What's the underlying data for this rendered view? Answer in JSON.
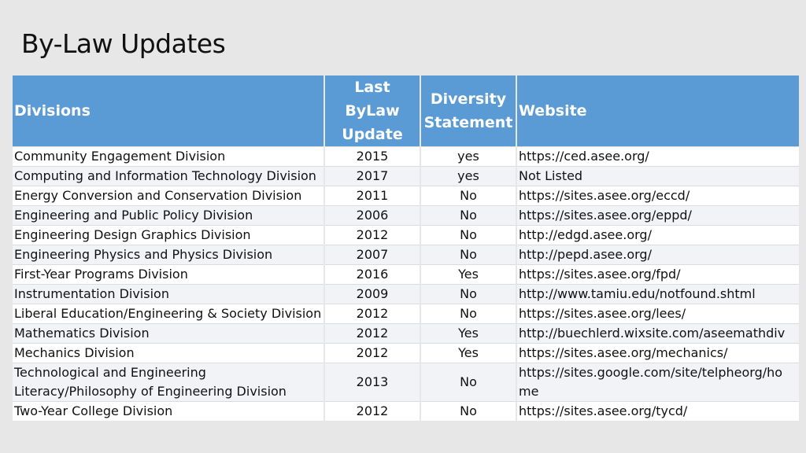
{
  "slide": {
    "title": "By-Law Updates"
  },
  "table": {
    "headers": {
      "divisions": "Divisions",
      "last_bylaw_line1": "Last ByLaw",
      "last_bylaw_line2": "Update",
      "diversity_line1": "Diversity",
      "diversity_line2": "Statement",
      "website": "Website"
    },
    "rows": [
      {
        "division": "Community Engagement Division",
        "year": "2015",
        "diversity": "yes",
        "website": "https://ced.asee.org/"
      },
      {
        "division": "Computing and Information Technology Division",
        "year": "2017",
        "diversity": "yes",
        "website": "Not Listed"
      },
      {
        "division": "Energy Conversion and Conservation Division",
        "year": "2011",
        "diversity": "No",
        "website": "https://sites.asee.org/eccd/"
      },
      {
        "division": "Engineering and Public Policy Division",
        "year": "2006",
        "diversity": "No",
        "website": "https://sites.asee.org/eppd/"
      },
      {
        "division": "Engineering Design Graphics Division",
        "year": "2012",
        "diversity": "No",
        "website": "http://edgd.asee.org/"
      },
      {
        "division": "Engineering Physics and Physics Division",
        "year": "2007",
        "diversity": "No",
        "website": "http://pepd.asee.org/"
      },
      {
        "division": "First-Year Programs Division",
        "year": "2016",
        "diversity": "Yes",
        "website": "https://sites.asee.org/fpd/"
      },
      {
        "division": "Instrumentation Division",
        "year": "2009",
        "diversity": "No",
        "website": "http://www.tamiu.edu/notfound.shtml"
      },
      {
        "division": "Liberal Education/Engineering & Society Division",
        "year": "2012",
        "diversity": "No",
        "website": "https://sites.asee.org/lees/"
      },
      {
        "division": "Mathematics Division",
        "year": "2012",
        "diversity": "Yes",
        "website": "http://buechlerd.wixsite.com/aseemathdiv"
      },
      {
        "division": "Mechanics Division",
        "year": "2012",
        "diversity": "Yes",
        "website": "https://sites.asee.org/mechanics/"
      },
      {
        "division_line1": "Technological and Engineering",
        "division_line2": "Literacy/Philosophy of Engineering Division",
        "year": "2013",
        "diversity": "No",
        "website_line1": "https://sites.google.com/site/telpheorg/ho",
        "website_line2": "me"
      },
      {
        "division": "Two-Year College Division",
        "year": "2012",
        "diversity": "No",
        "website": "https://sites.asee.org/tycd/"
      }
    ]
  }
}
